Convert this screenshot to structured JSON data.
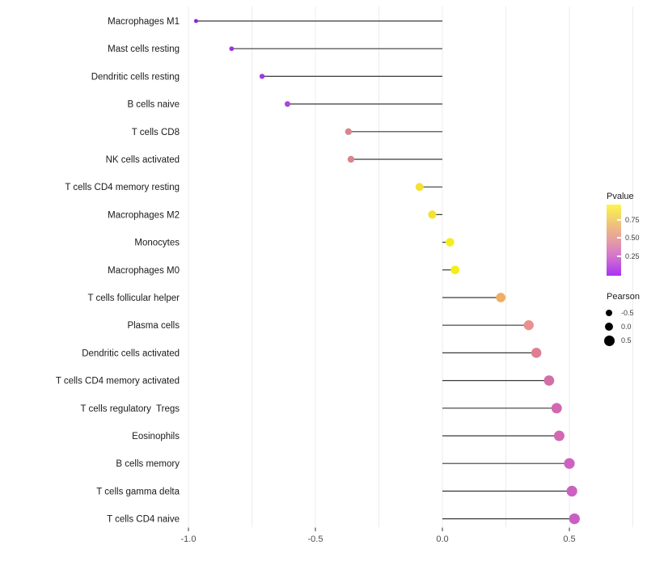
{
  "chart_data": {
    "type": "lollipop",
    "orientation": "horizontal",
    "title": "",
    "xlabel": "",
    "ylabel": "",
    "x_tick_labels": [
      "-1.0",
      "-0.5",
      "0.0",
      "0.5"
    ],
    "x_ticks": [
      -1.0,
      -0.5,
      0.0,
      0.5
    ],
    "xlim": [
      -1.06,
      0.78
    ],
    "grid_step": 0.25,
    "baseline": 0.0,
    "grid_on": true,
    "points": [
      {
        "label": "Macrophages M1",
        "pearson": -0.97,
        "pvalue_color": "#8E24DD"
      },
      {
        "label": "Mast cells resting",
        "pearson": -0.83,
        "pvalue_color": "#9D32E2"
      },
      {
        "label": "Dendritic cells resting",
        "pearson": -0.71,
        "pvalue_color": "#A139E0"
      },
      {
        "label": "B cells naive",
        "pearson": -0.61,
        "pvalue_color": "#AB46DB"
      },
      {
        "label": "T cells CD8",
        "pearson": -0.37,
        "pvalue_color": "#D8868E"
      },
      {
        "label": "NK cells activated",
        "pearson": -0.36,
        "pvalue_color": "#D8868C"
      },
      {
        "label": "T cells CD4 memory resting",
        "pearson": -0.09,
        "pvalue_color": "#F2E136"
      },
      {
        "label": "Macrophages M2",
        "pearson": -0.04,
        "pvalue_color": "#F2E42D"
      },
      {
        "label": "Monocytes",
        "pearson": 0.03,
        "pvalue_color": "#F4ED1E"
      },
      {
        "label": "Macrophages M0",
        "pearson": 0.05,
        "pvalue_color": "#F4EE18"
      },
      {
        "label": "T cells follicular helper",
        "pearson": 0.23,
        "pvalue_color": "#F0AE62"
      },
      {
        "label": "Plasma cells",
        "pearson": 0.34,
        "pvalue_color": "#E8918F"
      },
      {
        "label": "Dendritic cells activated",
        "pearson": 0.37,
        "pvalue_color": "#DD7E93"
      },
      {
        "label": "T cells CD4 memory activated",
        "pearson": 0.42,
        "pvalue_color": "#D26FA6"
      },
      {
        "label": "T cells regulatory  Tregs",
        "pearson": 0.45,
        "pvalue_color": "#D268B0"
      },
      {
        "label": "Eosinophils",
        "pearson": 0.46,
        "pvalue_color": "#D268B2"
      },
      {
        "label": "B cells memory",
        "pearson": 0.5,
        "pvalue_color": "#CC63BE"
      },
      {
        "label": "T cells gamma delta",
        "pearson": 0.51,
        "pvalue_color": "#CB62C0"
      },
      {
        "label": "T cells CD4 naive",
        "pearson": 0.52,
        "pvalue_color": "#C95FC4"
      }
    ],
    "legends": {
      "pvalue": {
        "title": "Pvalue",
        "tick_labels": [
          "0.75",
          "0.50",
          "0.25"
        ],
        "gradient_stops": [
          "#FBF64C",
          "#EFBD7F",
          "#E59DA2",
          "#D476CC",
          "#A933F2"
        ]
      },
      "pearson": {
        "title": "Pearson",
        "items": [
          {
            "label": "-0.5",
            "value": -0.5
          },
          {
            "label": "0.0",
            "value": 0.0
          },
          {
            "label": "0.5",
            "value": 0.5
          }
        ]
      }
    },
    "colors": {
      "background": "#FFFFFF",
      "gridline": "#ECECEC",
      "stem": "#3A3A3A",
      "tick_mark": "#333333",
      "axis_text": "#4D4D4D",
      "category_text": "#1A1A1A",
      "legend_dot": "#000000"
    }
  }
}
